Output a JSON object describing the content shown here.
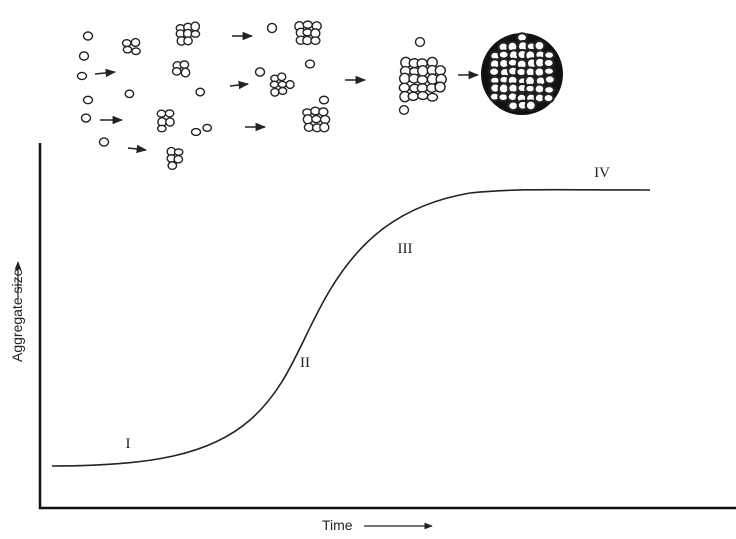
{
  "axes": {
    "y_label": "Aggregate size",
    "x_label": "Time"
  },
  "stages": [
    "I",
    "II",
    "III",
    "IV"
  ]
}
